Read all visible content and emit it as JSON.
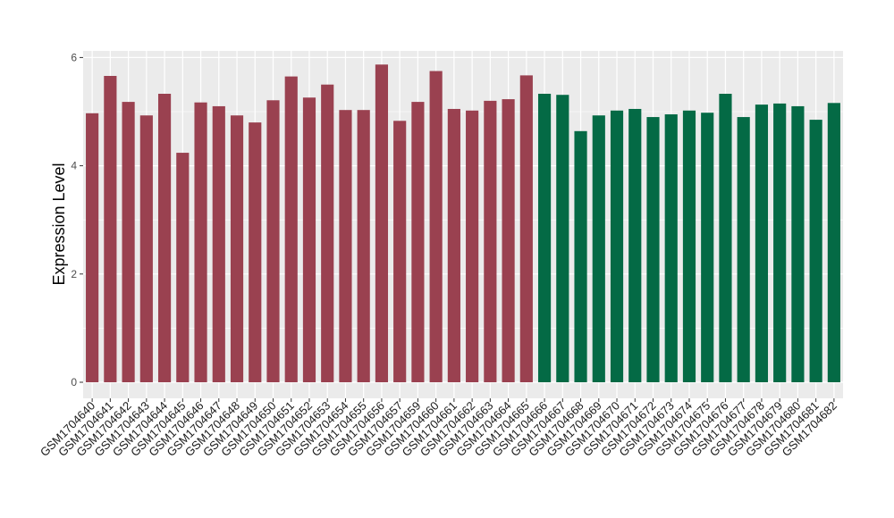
{
  "chart_data": {
    "type": "bar",
    "title": "",
    "xlabel": "",
    "ylabel": "Expression Level",
    "ylim": [
      0,
      6.05
    ],
    "yticks": [
      0,
      2,
      4,
      6
    ],
    "grid": true,
    "colors": {
      "group1": "#9a4150",
      "group2": "#046a45",
      "panel": "#ebebeb",
      "gridline": "#ffffff"
    },
    "categories": [
      "GSM1704640",
      "GSM1704641",
      "GSM1704642",
      "GSM1704643",
      "GSM1704644",
      "GSM1704645",
      "GSM1704646",
      "GSM1704647",
      "GSM1704648",
      "GSM1704649",
      "GSM1704650",
      "GSM1704651",
      "GSM1704652",
      "GSM1704653",
      "GSM1704654",
      "GSM1704655",
      "GSM1704656",
      "GSM1704657",
      "GSM1704659",
      "GSM1704660",
      "GSM1704661",
      "GSM1704662",
      "GSM1704663",
      "GSM1704664",
      "GSM1704665",
      "GSM1704666",
      "GSM1704667",
      "GSM1704668",
      "GSM1704669",
      "GSM1704670",
      "GSM1704671",
      "GSM1704672",
      "GSM1704673",
      "GSM1704674",
      "GSM1704675",
      "GSM1704676",
      "GSM1704677",
      "GSM1704678",
      "GSM1704679",
      "GSM1704680",
      "GSM1704681",
      "GSM1704682"
    ],
    "values": [
      4.97,
      5.66,
      5.18,
      4.93,
      5.33,
      4.24,
      5.17,
      5.1,
      4.93,
      4.8,
      5.21,
      5.65,
      5.26,
      5.5,
      5.03,
      5.03,
      5.87,
      4.83,
      5.18,
      5.75,
      5.05,
      5.02,
      5.2,
      5.23,
      5.67,
      5.33,
      5.31,
      4.64,
      4.93,
      5.02,
      5.05,
      4.9,
      4.95,
      5.02,
      4.98,
      5.33,
      4.9,
      5.13,
      5.15,
      5.1,
      4.85,
      5.16
    ],
    "groups": [
      1,
      1,
      1,
      1,
      1,
      1,
      1,
      1,
      1,
      1,
      1,
      1,
      1,
      1,
      1,
      1,
      1,
      1,
      1,
      1,
      1,
      1,
      1,
      1,
      1,
      2,
      2,
      2,
      2,
      2,
      2,
      2,
      2,
      2,
      2,
      2,
      2,
      2,
      2,
      2,
      2,
      2
    ]
  }
}
